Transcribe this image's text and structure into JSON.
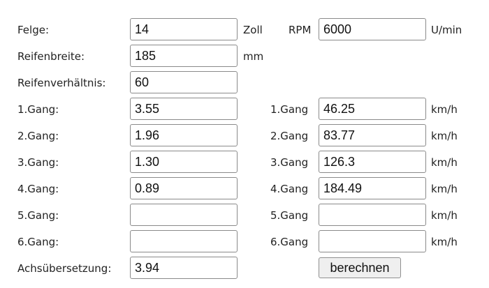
{
  "felge": {
    "label": "Felge:",
    "value": "14",
    "unit": "Zoll"
  },
  "reifenbreite": {
    "label": "Reifenbreite:",
    "value": "185",
    "unit": "mm"
  },
  "reifenverhaeltnis": {
    "label": "Reifenverhältnis:",
    "value": "60"
  },
  "rpm": {
    "label": "RPM",
    "value": "6000",
    "unit": "U/min"
  },
  "gears": [
    {
      "label": "1.Gang:",
      "ratio": "3.55",
      "result_label": "1.Gang",
      "speed": "46.25",
      "unit": "km/h"
    },
    {
      "label": "2.Gang:",
      "ratio": "1.96",
      "result_label": "2.Gang",
      "speed": "83.77",
      "unit": "km/h"
    },
    {
      "label": "3.Gang:",
      "ratio": "1.30",
      "result_label": "3.Gang",
      "speed": "126.3",
      "unit": "km/h"
    },
    {
      "label": "4.Gang:",
      "ratio": "0.89",
      "result_label": "4.Gang",
      "speed": "184.49",
      "unit": "km/h"
    },
    {
      "label": "5.Gang:",
      "ratio": "",
      "result_label": "5.Gang",
      "speed": "",
      "unit": "km/h"
    },
    {
      "label": "6.Gang:",
      "ratio": "",
      "result_label": "6.Gang",
      "speed": "",
      "unit": "km/h"
    }
  ],
  "achs": {
    "label": "Achsübersetzung:",
    "value": "3.94"
  },
  "button": "berechnen"
}
